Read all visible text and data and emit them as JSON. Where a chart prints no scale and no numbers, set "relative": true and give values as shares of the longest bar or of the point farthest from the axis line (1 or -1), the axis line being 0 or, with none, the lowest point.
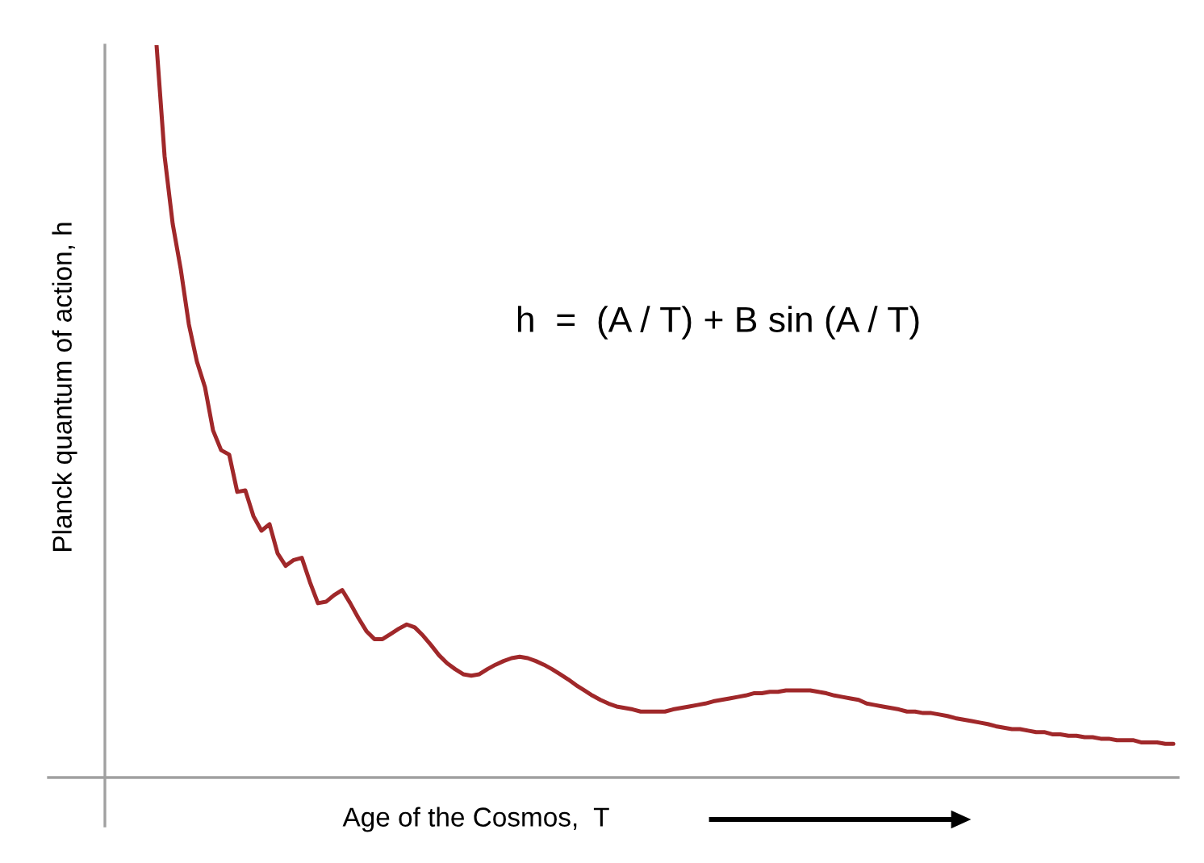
{
  "chart_data": {
    "type": "line",
    "relative": true,
    "xlabel": "Age of the Cosmos,  T",
    "ylabel": "Planck quantum of action, h",
    "annotations": [
      "h  =  (A / T) + B sin (A / T)"
    ],
    "categories": [
      null,
      null,
      null,
      null,
      null,
      null,
      null,
      null,
      null,
      null,
      null,
      null,
      null,
      null,
      null,
      null,
      null,
      null,
      null,
      null,
      null,
      null,
      null,
      null,
      null,
      null,
      null,
      null,
      null,
      null,
      null,
      null,
      null,
      null,
      null,
      null,
      null,
      null,
      null,
      null,
      null,
      null,
      null,
      null,
      null,
      null,
      null,
      null,
      null,
      null,
      null,
      null,
      null,
      null,
      null,
      null,
      null,
      null,
      null,
      null,
      null,
      null,
      null,
      null,
      null,
      null,
      null,
      null,
      null,
      null,
      null,
      null,
      null,
      null,
      null,
      null,
      null,
      null,
      null,
      null,
      null,
      null,
      null,
      null,
      null,
      null,
      null,
      null,
      null,
      null,
      null,
      null,
      null,
      null,
      null,
      null,
      null,
      null,
      null,
      null,
      null,
      null,
      null,
      null,
      null,
      null,
      null,
      null,
      null,
      null,
      null,
      null,
      null,
      null,
      null,
      null,
      null,
      null,
      null,
      null,
      null,
      null,
      null,
      null,
      null,
      null,
      null
    ],
    "series": [
      {
        "color": "#a0282a",
        "values": [
          1.0,
          0.848,
          0.756,
          0.694,
          0.619,
          0.568,
          0.533,
          0.474,
          0.447,
          0.441,
          0.39,
          0.392,
          0.357,
          0.337,
          0.346,
          0.306,
          0.289,
          0.297,
          0.3,
          0.267,
          0.238,
          0.24,
          0.249,
          0.256,
          0.238,
          0.218,
          0.2,
          0.189,
          0.189,
          0.196,
          0.203,
          0.209,
          0.205,
          0.194,
          0.181,
          0.167,
          0.156,
          0.148,
          0.141,
          0.139,
          0.141,
          0.148,
          0.154,
          0.159,
          0.163,
          0.165,
          0.163,
          0.159,
          0.154,
          0.148,
          0.141,
          0.134,
          0.126,
          0.119,
          0.112,
          0.106,
          0.101,
          0.097,
          0.095,
          0.093,
          0.09,
          0.09,
          0.09,
          0.09,
          0.093,
          0.095,
          0.097,
          0.099,
          0.101,
          0.104,
          0.106,
          0.108,
          0.11,
          0.112,
          0.115,
          0.115,
          0.117,
          0.117,
          0.119,
          0.119,
          0.119,
          0.119,
          0.117,
          0.115,
          0.112,
          0.11,
          0.108,
          0.106,
          0.101,
          0.099,
          0.097,
          0.095,
          0.093,
          0.09,
          0.09,
          0.088,
          0.088,
          0.086,
          0.084,
          0.081,
          0.079,
          0.077,
          0.075,
          0.073,
          0.07,
          0.068,
          0.066,
          0.066,
          0.064,
          0.062,
          0.062,
          0.059,
          0.059,
          0.057,
          0.057,
          0.055,
          0.055,
          0.053,
          0.053,
          0.051,
          0.051,
          0.051,
          0.048,
          0.048,
          0.048,
          0.046,
          0.046
        ]
      }
    ]
  }
}
